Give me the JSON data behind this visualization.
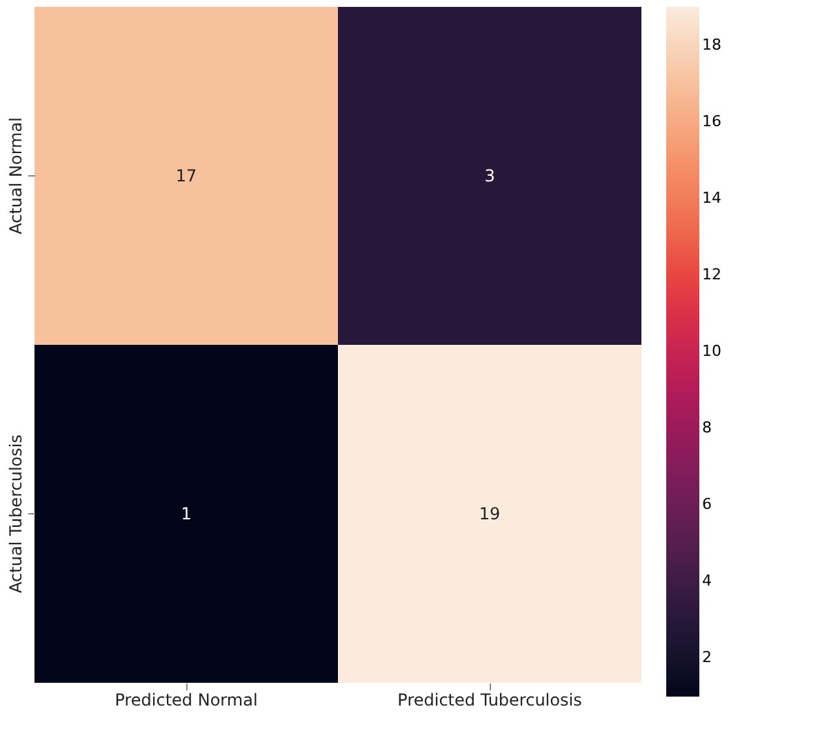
{
  "chart_data": {
    "type": "heatmap",
    "categories": [
      "Predicted Normal",
      "Predicted Tuberculosis"
    ],
    "y_categories": [
      "Actual Normal",
      "Actual Tuberculosis"
    ],
    "cells": [
      [
        17,
        3
      ],
      [
        1,
        19
      ]
    ],
    "data_labels": true,
    "clim": [
      1,
      19
    ],
    "cticks": [
      2,
      4,
      6,
      8,
      10,
      12,
      14,
      16,
      18
    ]
  }
}
